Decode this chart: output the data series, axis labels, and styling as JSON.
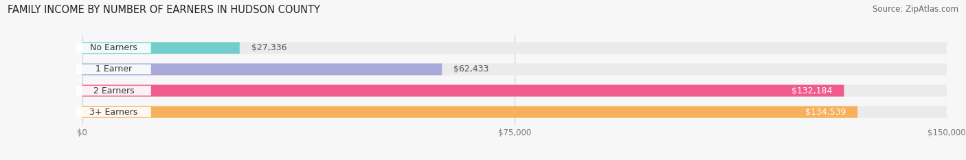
{
  "title": "FAMILY INCOME BY NUMBER OF EARNERS IN HUDSON COUNTY",
  "source": "Source: ZipAtlas.com",
  "categories": [
    "No Earners",
    "1 Earner",
    "2 Earners",
    "3+ Earners"
  ],
  "values": [
    27336,
    62433,
    132184,
    134539
  ],
  "bar_colors": [
    "#72ceca",
    "#a9aad9",
    "#f05b8c",
    "#f7b05b"
  ],
  "bar_bg_color": "#ebebeb",
  "value_labels": [
    "$27,336",
    "$62,433",
    "$132,184",
    "$134,539"
  ],
  "x_ticks": [
    0,
    75000,
    150000
  ],
  "x_tick_labels": [
    "$0",
    "$75,000",
    "$150,000"
  ],
  "xlim": [
    0,
    150000
  ],
  "title_fontsize": 10.5,
  "source_fontsize": 8.5,
  "label_fontsize": 9,
  "value_fontsize": 9,
  "background_color": "#f7f7f7",
  "value_inside_color": "#ffffff",
  "value_outside_color": "#555555",
  "inside_threshold": 0.78,
  "grid_color": "#d0d0d0",
  "tick_label_color": "#777777",
  "cat_label_bg": "#ffffff",
  "cat_label_color": "#333333"
}
